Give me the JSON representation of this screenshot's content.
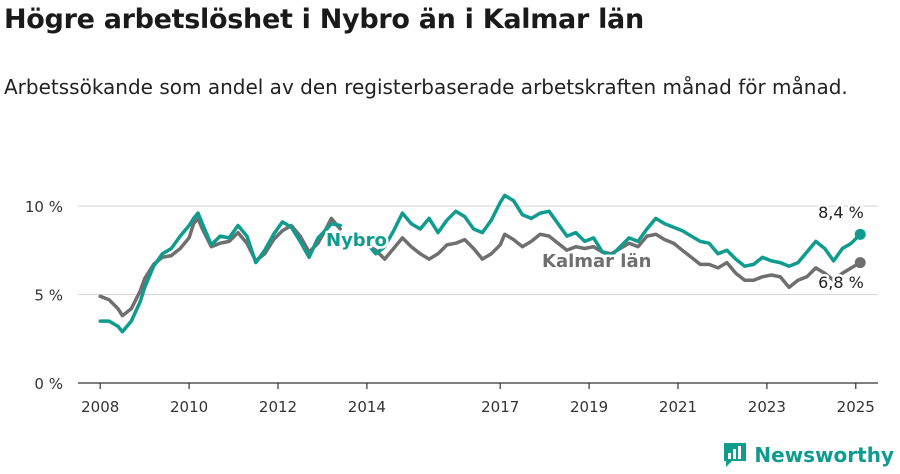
{
  "header": {
    "title": "Högre arbetslöshet i Nybro än i Kalmar län",
    "subtitle": "Arbetssökande som andel av den registerbaserade arbetskraften månad för månad."
  },
  "brand": {
    "name": "Newsworthy",
    "icon": "newsworthy-logo-icon",
    "color": "#0f9b8e"
  },
  "chart_data": {
    "type": "line",
    "title": "",
    "xlabel": "",
    "ylabel": "",
    "xlim": [
      2007.5,
      2025.5
    ],
    "ylim": [
      0,
      10
    ],
    "grid": true,
    "y_ticks": [
      {
        "value": 0,
        "label": "0 %"
      },
      {
        "value": 5,
        "label": "5 %"
      },
      {
        "value": 10,
        "label": "10 %"
      }
    ],
    "x_ticks": [
      {
        "value": 2008,
        "label": "2008"
      },
      {
        "value": 2010,
        "label": "2010"
      },
      {
        "value": 2012,
        "label": "2012"
      },
      {
        "value": 2014,
        "label": "2014"
      },
      {
        "value": 2017,
        "label": "2017"
      },
      {
        "value": 2019,
        "label": "2019"
      },
      {
        "value": 2021,
        "label": "2021"
      },
      {
        "value": 2023,
        "label": "2023"
      },
      {
        "value": 2025,
        "label": "2025"
      }
    ],
    "series": [
      {
        "name": "Kalmar län",
        "color": "#6f6f6f",
        "end_label": "6,8 %",
        "points": [
          [
            2008.0,
            4.9
          ],
          [
            2008.2,
            4.7
          ],
          [
            2008.4,
            4.2
          ],
          [
            2008.5,
            3.8
          ],
          [
            2008.7,
            4.2
          ],
          [
            2008.9,
            5.2
          ],
          [
            2009.0,
            5.9
          ],
          [
            2009.2,
            6.7
          ],
          [
            2009.4,
            7.1
          ],
          [
            2009.6,
            7.2
          ],
          [
            2009.8,
            7.6
          ],
          [
            2010.0,
            8.2
          ],
          [
            2010.1,
            9.0
          ],
          [
            2010.2,
            9.3
          ],
          [
            2010.3,
            8.7
          ],
          [
            2010.5,
            7.7
          ],
          [
            2010.7,
            7.9
          ],
          [
            2010.9,
            8.0
          ],
          [
            2011.1,
            8.5
          ],
          [
            2011.3,
            7.9
          ],
          [
            2011.5,
            6.9
          ],
          [
            2011.7,
            7.3
          ],
          [
            2011.9,
            8.1
          ],
          [
            2012.1,
            8.6
          ],
          [
            2012.3,
            8.9
          ],
          [
            2012.5,
            8.3
          ],
          [
            2012.7,
            7.4
          ],
          [
            2012.9,
            7.9
          ],
          [
            2013.1,
            8.8
          ],
          [
            2013.2,
            9.3
          ],
          [
            2013.4,
            8.7
          ],
          [
            2014.0,
            7.8
          ],
          [
            2014.2,
            7.5
          ],
          [
            2014.4,
            7.0
          ],
          [
            2014.6,
            7.6
          ],
          [
            2014.8,
            8.2
          ],
          [
            2015.0,
            7.7
          ],
          [
            2015.2,
            7.3
          ],
          [
            2015.4,
            7.0
          ],
          [
            2015.6,
            7.3
          ],
          [
            2015.8,
            7.8
          ],
          [
            2016.0,
            7.9
          ],
          [
            2016.2,
            8.1
          ],
          [
            2016.4,
            7.6
          ],
          [
            2016.6,
            7.0
          ],
          [
            2016.8,
            7.3
          ],
          [
            2017.0,
            7.8
          ],
          [
            2017.1,
            8.4
          ],
          [
            2017.3,
            8.1
          ],
          [
            2017.5,
            7.7
          ],
          [
            2017.7,
            8.0
          ],
          [
            2017.9,
            8.4
          ],
          [
            2018.1,
            8.3
          ],
          [
            2018.3,
            7.9
          ],
          [
            2018.5,
            7.5
          ],
          [
            2018.7,
            7.7
          ],
          [
            2018.9,
            7.6
          ],
          [
            2019.1,
            7.7
          ],
          [
            2019.3,
            7.4
          ],
          [
            2019.5,
            7.3
          ],
          [
            2019.7,
            7.6
          ],
          [
            2019.9,
            7.9
          ],
          [
            2020.1,
            7.7
          ],
          [
            2020.3,
            8.3
          ],
          [
            2020.5,
            8.4
          ],
          [
            2020.7,
            8.1
          ],
          [
            2020.9,
            7.9
          ],
          [
            2021.1,
            7.5
          ],
          [
            2021.3,
            7.1
          ],
          [
            2021.5,
            6.7
          ],
          [
            2021.7,
            6.7
          ],
          [
            2021.9,
            6.5
          ],
          [
            2022.1,
            6.8
          ],
          [
            2022.3,
            6.2
          ],
          [
            2022.5,
            5.8
          ],
          [
            2022.7,
            5.8
          ],
          [
            2022.9,
            6.0
          ],
          [
            2023.1,
            6.1
          ],
          [
            2023.3,
            6.0
          ],
          [
            2023.5,
            5.4
          ],
          [
            2023.7,
            5.8
          ],
          [
            2023.9,
            6.0
          ],
          [
            2024.1,
            6.5
          ],
          [
            2024.3,
            6.2
          ],
          [
            2024.5,
            5.8
          ],
          [
            2024.7,
            6.2
          ],
          [
            2024.9,
            6.5
          ],
          [
            2025.1,
            6.8
          ]
        ]
      },
      {
        "name": "Nybro",
        "color": "#0f9b8e",
        "end_label": "8,4 %",
        "points": [
          [
            2008.0,
            3.5
          ],
          [
            2008.2,
            3.5
          ],
          [
            2008.4,
            3.2
          ],
          [
            2008.5,
            2.9
          ],
          [
            2008.7,
            3.5
          ],
          [
            2008.9,
            4.6
          ],
          [
            2009.0,
            5.4
          ],
          [
            2009.2,
            6.6
          ],
          [
            2009.4,
            7.3
          ],
          [
            2009.6,
            7.6
          ],
          [
            2009.8,
            8.3
          ],
          [
            2010.0,
            8.9
          ],
          [
            2010.1,
            9.3
          ],
          [
            2010.2,
            9.6
          ],
          [
            2010.3,
            9.0
          ],
          [
            2010.5,
            7.8
          ],
          [
            2010.7,
            8.3
          ],
          [
            2010.9,
            8.2
          ],
          [
            2011.1,
            8.9
          ],
          [
            2011.3,
            8.3
          ],
          [
            2011.5,
            6.8
          ],
          [
            2011.7,
            7.5
          ],
          [
            2011.9,
            8.4
          ],
          [
            2012.1,
            9.1
          ],
          [
            2012.3,
            8.8
          ],
          [
            2012.5,
            8.0
          ],
          [
            2012.7,
            7.1
          ],
          [
            2012.9,
            8.2
          ],
          [
            2013.1,
            8.7
          ],
          [
            2013.2,
            9.0
          ],
          [
            2013.4,
            8.9
          ],
          [
            2014.0,
            7.9
          ],
          [
            2014.2,
            7.3
          ],
          [
            2014.4,
            7.7
          ],
          [
            2014.6,
            8.6
          ],
          [
            2014.8,
            9.6
          ],
          [
            2015.0,
            9.0
          ],
          [
            2015.2,
            8.7
          ],
          [
            2015.4,
            9.3
          ],
          [
            2015.6,
            8.5
          ],
          [
            2015.8,
            9.2
          ],
          [
            2016.0,
            9.7
          ],
          [
            2016.2,
            9.4
          ],
          [
            2016.4,
            8.7
          ],
          [
            2016.6,
            8.5
          ],
          [
            2016.8,
            9.2
          ],
          [
            2017.0,
            10.2
          ],
          [
            2017.1,
            10.6
          ],
          [
            2017.3,
            10.3
          ],
          [
            2017.5,
            9.5
          ],
          [
            2017.7,
            9.3
          ],
          [
            2017.9,
            9.6
          ],
          [
            2018.1,
            9.7
          ],
          [
            2018.3,
            9.0
          ],
          [
            2018.5,
            8.3
          ],
          [
            2018.7,
            8.5
          ],
          [
            2018.9,
            8.0
          ],
          [
            2019.1,
            8.2
          ],
          [
            2019.3,
            7.4
          ],
          [
            2019.5,
            7.2
          ],
          [
            2019.7,
            7.7
          ],
          [
            2019.9,
            8.2
          ],
          [
            2020.1,
            8.0
          ],
          [
            2020.3,
            8.7
          ],
          [
            2020.5,
            9.3
          ],
          [
            2020.7,
            9.0
          ],
          [
            2020.9,
            8.8
          ],
          [
            2021.1,
            8.6
          ],
          [
            2021.3,
            8.3
          ],
          [
            2021.5,
            8.0
          ],
          [
            2021.7,
            7.9
          ],
          [
            2021.9,
            7.3
          ],
          [
            2022.1,
            7.5
          ],
          [
            2022.3,
            7.0
          ],
          [
            2022.5,
            6.6
          ],
          [
            2022.7,
            6.7
          ],
          [
            2022.9,
            7.1
          ],
          [
            2023.1,
            6.9
          ],
          [
            2023.3,
            6.8
          ],
          [
            2023.5,
            6.6
          ],
          [
            2023.7,
            6.8
          ],
          [
            2023.9,
            7.4
          ],
          [
            2024.1,
            8.0
          ],
          [
            2024.3,
            7.6
          ],
          [
            2024.5,
            6.9
          ],
          [
            2024.7,
            7.6
          ],
          [
            2024.9,
            7.9
          ],
          [
            2025.1,
            8.4
          ]
        ]
      }
    ]
  }
}
